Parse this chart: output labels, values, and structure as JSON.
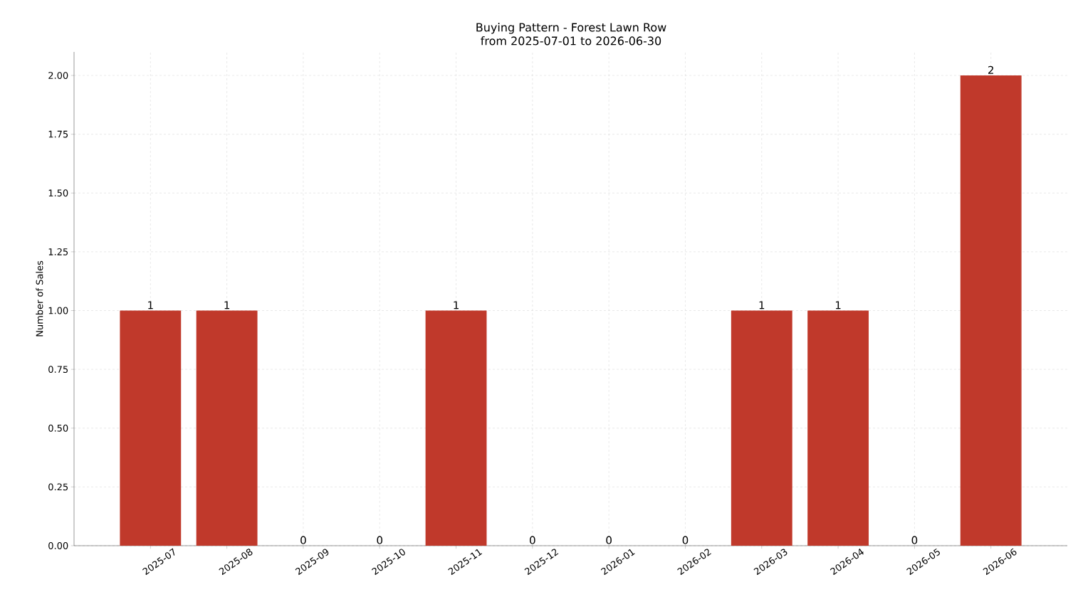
{
  "chart_data": {
    "type": "bar",
    "title": "Buying Pattern - Forest Lawn Row",
    "subtitle": "from 2025-07-01 to 2026-06-30",
    "ylabel": "Number of Sales",
    "categories": [
      "2025-07",
      "2025-08",
      "2025-09",
      "2025-10",
      "2025-11",
      "2025-12",
      "2026-01",
      "2026-02",
      "2026-03",
      "2026-04",
      "2026-05",
      "2026-06"
    ],
    "values": [
      1,
      1,
      0,
      0,
      1,
      0,
      0,
      0,
      1,
      1,
      0,
      2
    ],
    "color": "#c0392b",
    "data_labels": true,
    "grid": true,
    "ylim": [
      0,
      2.1
    ],
    "yticks": [
      {
        "value": 0,
        "label": "0.00"
      },
      {
        "value": 0.25,
        "label": "0.25"
      },
      {
        "value": 0.5,
        "label": "0.50"
      },
      {
        "value": 0.75,
        "label": "0.75"
      },
      {
        "value": 1,
        "label": "1.00"
      },
      {
        "value": 1.25,
        "label": "1.25"
      },
      {
        "value": 1.5,
        "label": "1.50"
      },
      {
        "value": 1.75,
        "label": "1.75"
      },
      {
        "value": 2,
        "label": "2.00"
      }
    ]
  }
}
